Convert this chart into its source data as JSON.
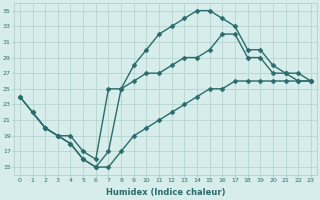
{
  "xlabel": "Humidex (Indice chaleur)",
  "bg_color": "#d6edeb",
  "grid_color": "#b0d0cc",
  "line_color": "#2a6b6b",
  "marker": "D",
  "markersize": 2.5,
  "linewidth": 1.0,
  "xlim": [
    -0.5,
    23.5
  ],
  "ylim": [
    14,
    36
  ],
  "xticks": [
    0,
    1,
    2,
    3,
    4,
    5,
    6,
    7,
    8,
    9,
    10,
    11,
    12,
    13,
    14,
    15,
    16,
    17,
    18,
    19,
    20,
    21,
    22,
    23
  ],
  "yticks": [
    15,
    17,
    19,
    21,
    23,
    25,
    27,
    29,
    31,
    33,
    35
  ],
  "curve1_x": [
    0,
    1,
    2,
    3,
    4,
    5,
    6,
    7,
    8,
    9,
    10,
    11,
    12,
    13,
    14,
    15,
    16,
    17,
    18,
    19,
    20,
    21,
    22,
    23
  ],
  "curve1_y": [
    24,
    22,
    20,
    19,
    18,
    16,
    15,
    17,
    25,
    28,
    30,
    32,
    33,
    34,
    35,
    35,
    34,
    33,
    30,
    30,
    28,
    27,
    27,
    26
  ],
  "curve2_x": [
    0,
    2,
    3,
    4,
    5,
    6,
    7,
    8,
    9,
    10,
    11,
    12,
    13,
    14,
    15,
    16,
    17,
    18,
    19,
    20,
    21,
    22,
    23
  ],
  "curve2_y": [
    24,
    20,
    19,
    19,
    17,
    16,
    25,
    25,
    26,
    27,
    27,
    28,
    29,
    29,
    30,
    32,
    32,
    29,
    29,
    27,
    27,
    26,
    26
  ],
  "curve3_x": [
    1,
    2,
    3,
    4,
    5,
    6,
    7,
    8,
    9,
    10,
    11,
    12,
    13,
    14,
    15,
    16,
    17,
    18,
    19,
    20,
    21,
    22,
    23
  ],
  "curve3_y": [
    22,
    20,
    19,
    18,
    16,
    15,
    15,
    17,
    19,
    20,
    21,
    22,
    23,
    24,
    25,
    25,
    26,
    26,
    26,
    26,
    26,
    26,
    26
  ]
}
